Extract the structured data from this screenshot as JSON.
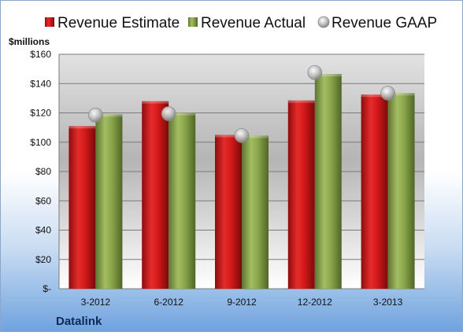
{
  "chart_data": {
    "type": "bar",
    "unit_label": "$millions",
    "company": "Datalink",
    "categories": [
      "3-2012",
      "6-2012",
      "9-2012",
      "12-2012",
      "3-2013"
    ],
    "series": [
      {
        "name": "Revenue Estimate",
        "kind": "bar",
        "color": "#cc1111",
        "values": [
          111,
          128,
          105,
          128.5,
          132.5
        ]
      },
      {
        "name": "Revenue Actual",
        "kind": "bar",
        "color": "#8aa64a",
        "values": [
          119,
          120,
          104.5,
          146.5,
          133.5
        ]
      },
      {
        "name": "Revenue GAAP",
        "kind": "marker",
        "color": "#b8b8b8",
        "values": [
          118.5,
          119.5,
          104.5,
          147.5,
          133.5
        ]
      }
    ],
    "ylim": [
      0,
      160
    ],
    "yticks": [
      0,
      20,
      40,
      60,
      80,
      100,
      120,
      140,
      160
    ],
    "ytick_labels": [
      "$-",
      "$20",
      "$40",
      "$60",
      "$80",
      "$100",
      "$120",
      "$140",
      "$160"
    ],
    "grid": true,
    "legend_position": "top"
  }
}
